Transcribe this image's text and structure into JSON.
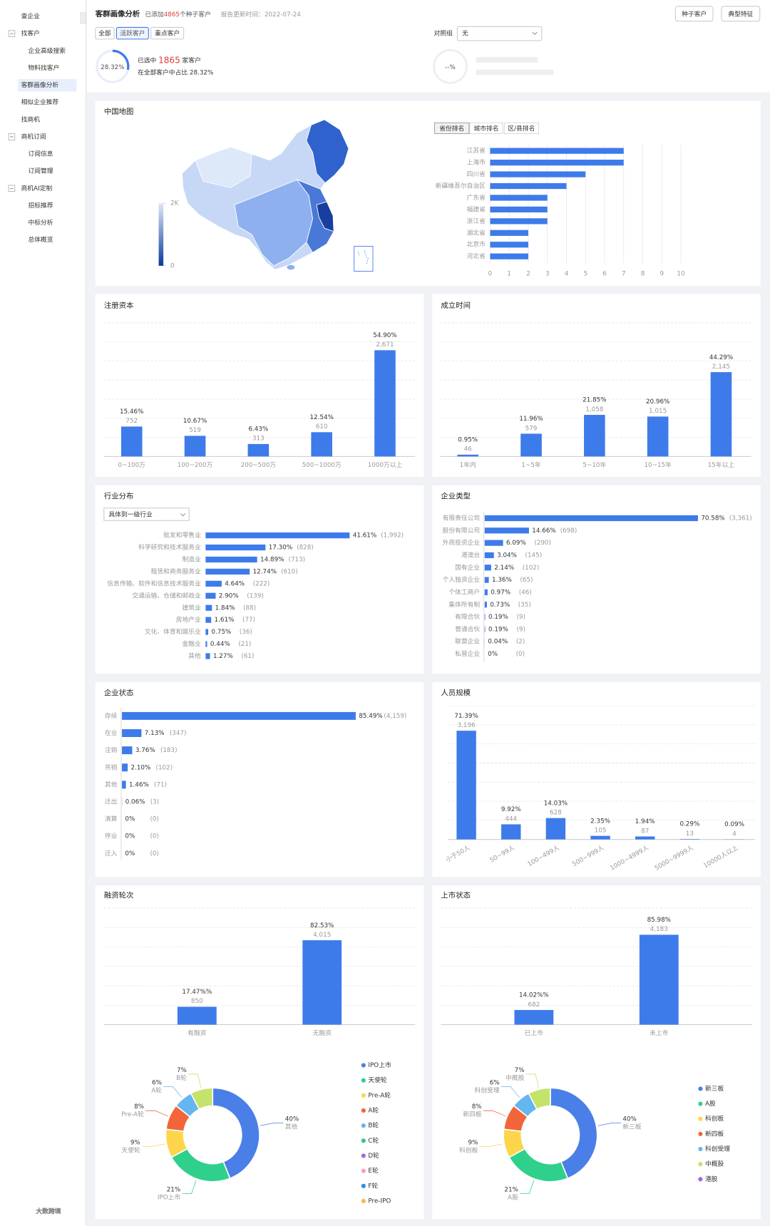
{
  "sidebar": {
    "items": [
      {
        "label": "查企业"
      },
      {
        "label": "找客户",
        "children": [
          "企业高级搜索",
          "物料找客户"
        ]
      },
      {
        "label": "客群画像分析"
      },
      {
        "label": "相似企业推荐"
      },
      {
        "label": "找商机"
      },
      {
        "label": "商机订阅",
        "children": [
          "订阅信息",
          "订阅管理"
        ]
      },
      {
        "label": "商机AI定制",
        "children": [
          "招标推荐",
          "中标分析",
          "总体概览"
        ]
      }
    ]
  },
  "header": {
    "title": "客群画像分析",
    "added_prefix": "已添加",
    "added_count": 4865,
    "added_suffix": "个种子客户",
    "report_date": "报告更新时间：2022-07-24",
    "buttons": [
      "种子客户",
      "典型特征"
    ],
    "tabs": [
      "全部",
      "活跃客户",
      "重点客户"
    ],
    "ring": {
      "value": 28.32,
      "label": "28.32%"
    },
    "selected_prefix": "已选中",
    "selected_count": 1865,
    "selected_suffix": "家客户",
    "share_text": "在全部客户中占比 28.32%",
    "compare_label": "对照组",
    "compare_value": "无",
    "compare_ring": "--%"
  },
  "watermark": "大数跨境",
  "chart_data": [
    {
      "type": "map",
      "title": "中国地图",
      "clim": [
        0,
        2000
      ],
      "colorbar_ticks": [
        {
          "value": 2000,
          "label": "2K"
        },
        0
      ],
      "colors": [
        "#0b3a9c",
        "#dde8f8"
      ]
    },
    {
      "type": "hbar",
      "tabs": [
        "省份排名",
        "城市排名",
        "区/县排名"
      ],
      "categories": [
        "江苏省",
        "上海市",
        "四川省",
        "新疆维吾尔自治区",
        "广东省",
        "福建省",
        "浙江省",
        "湖北省",
        "北京市",
        "河北省"
      ],
      "values": [
        7,
        7,
        5,
        4,
        3,
        3,
        3,
        2,
        2,
        2
      ],
      "color": "#3e7bea",
      "xlim": [
        0,
        10
      ],
      "xticks": [
        0,
        1,
        2,
        3,
        4,
        5,
        6,
        7,
        8,
        9,
        10
      ],
      "grid": true
    },
    {
      "type": "bar",
      "title": "注册资本",
      "categories": [
        "0~100万",
        "100~200万",
        "200~500万",
        "500~1000万",
        "1000万以上"
      ],
      "values": [
        752,
        519,
        313,
        610,
        2671
      ],
      "value_labels": [
        "752",
        "519",
        "313",
        "610",
        "2,671"
      ],
      "share_labels": [
        "15.46%",
        "10.67%",
        "6.43%",
        "12.54%",
        "54.90%"
      ],
      "color": "#3e7bea",
      "ylim": [
        0,
        3360
      ],
      "grid": true
    },
    {
      "type": "bar",
      "title": "成立时间",
      "categories": [
        "1年内",
        "1~5年",
        "5~10年",
        "10~15年",
        "15年以上"
      ],
      "values": [
        46,
        579,
        1058,
        1015,
        2145
      ],
      "value_labels": [
        "46",
        "579",
        "1,058",
        "1,015",
        "2,145"
      ],
      "share_labels": [
        "0.95%",
        "11.96%",
        "21.85%",
        "20.96%",
        "44.29%"
      ],
      "color": "#3e7bea",
      "ylim": [
        0,
        3400
      ],
      "grid": true
    },
    {
      "type": "hbar",
      "title": "行业分布",
      "dropdown": "具体到一级行业",
      "categories": [
        "批发和零售业",
        "科学研究和技术服务业",
        "制造业",
        "租赁和商务服务业",
        "信息传输、软件和信息技术服务业",
        "交通运输、仓储和邮政业",
        "建筑业",
        "房地产业",
        "文化、体育和娱乐业",
        "金融业",
        "其他"
      ],
      "values": [
        1992,
        828,
        713,
        610,
        222,
        139,
        88,
        77,
        36,
        21,
        61
      ],
      "value_labels": [
        "(1,992)",
        "(828)",
        "(713)",
        "(610)",
        "(222)",
        "(139)",
        "(88)",
        "(77)",
        "(36)",
        "(21)",
        "(61)"
      ],
      "share_labels": [
        "41.61%",
        "17.30%",
        "14.89%",
        "12.74%",
        "4.64%",
        "2.90%",
        "1.84%",
        "1.61%",
        "0.75%",
        "0.44%",
        "1.27%"
      ],
      "color": "#3e7bea",
      "xlim": [
        0,
        2000
      ]
    },
    {
      "type": "hbar",
      "title": "企业类型",
      "categories": [
        "有限责任公司",
        "股份有限公司",
        "外商投资企业",
        "港澳台",
        "国有企业",
        "个人独资企业",
        "个体工商户",
        "集体所有制",
        "有限合伙",
        "普通合伙",
        "联营企业",
        "私营企业"
      ],
      "values": [
        3361,
        698,
        290,
        145,
        102,
        65,
        46,
        35,
        9,
        9,
        2,
        0
      ],
      "value_labels": [
        "(3,361)",
        "(698)",
        "(290)",
        "(145)",
        "(102)",
        "(65)",
        "(46)",
        "(35)",
        "(9)",
        "(9)",
        "(2)",
        "(0)"
      ],
      "share_labels": [
        "70.58%",
        "14.66%",
        "6.09%",
        "3.04%",
        "2.14%",
        "1.36%",
        "0.97%",
        "0.73%",
        "0.19%",
        "0.19%",
        "0.04%",
        "0%"
      ],
      "color": "#3e7bea",
      "xlim": [
        0,
        3400
      ]
    },
    {
      "type": "hbar",
      "title": "企业状态",
      "categories": [
        "存续",
        "在业",
        "注销",
        "吊销",
        "其他",
        "迁出",
        "清算",
        "停业",
        "迁入"
      ],
      "values": [
        4159,
        347,
        183,
        102,
        71,
        3,
        0,
        0,
        0
      ],
      "value_labels": [
        "(4,159)",
        "(347)",
        "(183)",
        "(102)",
        "(71)",
        "(3)",
        "(0)",
        "(0)",
        "(0)"
      ],
      "share_labels": [
        "85.49%",
        "7.13%",
        "3.76%",
        "2.10%",
        "1.46%",
        "0.06%",
        "0%",
        "0%",
        "0%"
      ],
      "color": "#3e7bea",
      "xlim": [
        0,
        4200
      ]
    },
    {
      "type": "bar",
      "title": "人员规模",
      "categories": [
        "小于50人",
        "50~99人",
        "100~499人",
        "500~999人",
        "1000~4999人",
        "5000~9999人",
        "10000人以上"
      ],
      "values": [
        3196,
        444,
        628,
        105,
        87,
        13,
        4
      ],
      "value_labels": [
        "3,196",
        "444",
        "628",
        "105",
        "87",
        "13",
        "4"
      ],
      "share_labels": [
        "71.39%",
        "9.92%",
        "14.03%",
        "2.35%",
        "1.94%",
        "0.29%",
        "0.09%"
      ],
      "color": "#3e7bea",
      "ylim": [
        0,
        3930
      ],
      "grid": true
    },
    {
      "type": "bar",
      "title": "融资轮次",
      "categories": [
        "有融资",
        "无融资"
      ],
      "values": [
        850,
        4015
      ],
      "value_labels": [
        "850",
        "4,015"
      ],
      "share_labels": [
        "17.47%%",
        "82.53%"
      ],
      "color": "#3e7bea",
      "ylim": [
        0,
        5540
      ],
      "grid": true
    },
    {
      "type": "donut",
      "categories": [
        "其他",
        "IPO上市",
        "天使轮",
        "Pre-A轮",
        "A轮",
        "B轮"
      ],
      "values": [
        40,
        21,
        9,
        8,
        6,
        7
      ],
      "value_labels": [
        "40%",
        "21%",
        "9%",
        "8%",
        "6%",
        "7%"
      ],
      "colors": [
        "#4a7fe8",
        "#2fd08c",
        "#fdd54a",
        "#f2653a",
        "#64b5f0",
        "#c4e36a"
      ],
      "legend": [
        {
          "name": "IPO上市",
          "color": "#4a7fe8"
        },
        {
          "name": "天使轮",
          "color": "#2fd08c"
        },
        {
          "name": "Pre-A轮",
          "color": "#fdd54a"
        },
        {
          "name": "A轮",
          "color": "#f2653a"
        },
        {
          "name": "B轮",
          "color": "#64b5f0"
        },
        {
          "name": "C轮",
          "color": "#3cc47c"
        },
        {
          "name": "D轮",
          "color": "#9b6be0"
        },
        {
          "name": "E轮",
          "color": "#f79ec0"
        },
        {
          "name": "F轮",
          "color": "#2f8be8"
        },
        {
          "name": "Pre-IPO",
          "color": "#fbb84a"
        }
      ]
    },
    {
      "type": "bar",
      "title": "上市状态",
      "categories": [
        "已上市",
        "未上市"
      ],
      "values": [
        682,
        4183
      ],
      "value_labels": [
        "682",
        "4,183"
      ],
      "share_labels": [
        "14.02%%",
        "85.98%"
      ],
      "color": "#3e7bea",
      "ylim": [
        0,
        5420
      ],
      "grid": true
    },
    {
      "type": "donut",
      "categories": [
        "新三板",
        "A股",
        "科创板",
        "新四板",
        "科创受理",
        "中概股"
      ],
      "values": [
        40,
        21,
        9,
        8,
        6,
        7
      ],
      "value_labels": [
        "40%",
        "21%",
        "9%",
        "8%",
        "6%",
        "7%"
      ],
      "colors": [
        "#4a7fe8",
        "#2fd08c",
        "#fdd54a",
        "#f2653a",
        "#64b5f0",
        "#c4e36a"
      ],
      "legend": [
        {
          "name": "新三板",
          "color": "#4a7fe8"
        },
        {
          "name": "A股",
          "color": "#2fd08c"
        },
        {
          "name": "科创板",
          "color": "#fdd54a"
        },
        {
          "name": "新四板",
          "color": "#f2653a"
        },
        {
          "name": "科创受理",
          "color": "#64b5f0"
        },
        {
          "name": "中概股",
          "color": "#c4e36a"
        },
        {
          "name": "港股",
          "color": "#9b6be0"
        }
      ]
    }
  ]
}
